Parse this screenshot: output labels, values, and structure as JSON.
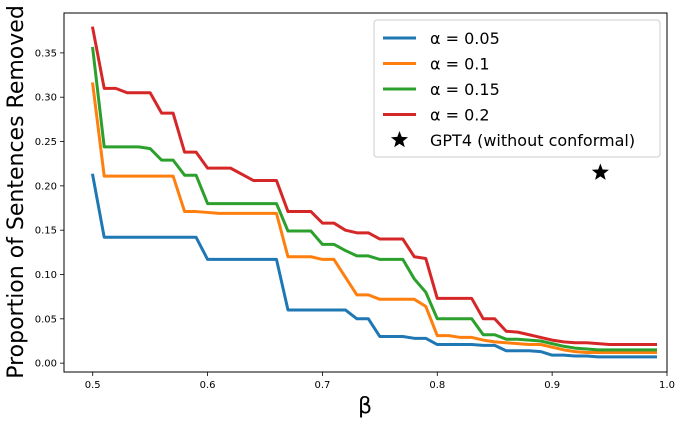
{
  "chart_data": {
    "type": "line",
    "title": "",
    "xlabel": "β",
    "ylabel": "Proportion of Sentences Removed",
    "xlim": [
      0.475,
      1.0
    ],
    "ylim": [
      -0.01,
      0.395
    ],
    "xticks": [
      0.5,
      0.6,
      0.7,
      0.8,
      0.9,
      1.0
    ],
    "xtick_labels": [
      "0.5",
      "0.6",
      "0.7",
      "0.8",
      "0.9",
      "1.0"
    ],
    "yticks": [
      0.0,
      0.05,
      0.1,
      0.15,
      0.2,
      0.25,
      0.3,
      0.35
    ],
    "ytick_labels": [
      "0.00",
      "0.05",
      "0.10",
      "0.15",
      "0.20",
      "0.25",
      "0.30",
      "0.35"
    ],
    "grid": false,
    "legend_position": "top-right",
    "x": [
      0.5,
      0.51,
      0.52,
      0.53,
      0.54,
      0.55,
      0.56,
      0.57,
      0.58,
      0.59,
      0.6,
      0.61,
      0.62,
      0.63,
      0.64,
      0.65,
      0.66,
      0.67,
      0.68,
      0.69,
      0.7,
      0.71,
      0.72,
      0.73,
      0.74,
      0.75,
      0.76,
      0.77,
      0.78,
      0.79,
      0.8,
      0.81,
      0.82,
      0.83,
      0.84,
      0.85,
      0.86,
      0.87,
      0.88,
      0.89,
      0.9,
      0.91,
      0.92,
      0.93,
      0.94,
      0.95,
      0.96,
      0.97,
      0.98,
      0.99
    ],
    "series": [
      {
        "name": "α = 0.05",
        "color": "#1f77b4",
        "values": [
          0.212,
          0.142,
          0.142,
          0.142,
          0.142,
          0.142,
          0.142,
          0.142,
          0.142,
          0.142,
          0.117,
          0.117,
          0.117,
          0.117,
          0.117,
          0.117,
          0.117,
          0.06,
          0.06,
          0.06,
          0.06,
          0.06,
          0.06,
          0.05,
          0.05,
          0.03,
          0.03,
          0.03,
          0.028,
          0.028,
          0.021,
          0.021,
          0.021,
          0.021,
          0.02,
          0.02,
          0.014,
          0.014,
          0.014,
          0.013,
          0.009,
          0.009,
          0.008,
          0.008,
          0.007,
          0.007,
          0.007,
          0.007,
          0.007,
          0.007
        ]
      },
      {
        "name": "α = 0.1",
        "color": "#ff7f0e",
        "values": [
          0.315,
          0.211,
          0.211,
          0.211,
          0.211,
          0.211,
          0.211,
          0.211,
          0.171,
          0.171,
          0.17,
          0.169,
          0.169,
          0.169,
          0.169,
          0.169,
          0.169,
          0.12,
          0.12,
          0.12,
          0.117,
          0.117,
          0.097,
          0.077,
          0.077,
          0.072,
          0.072,
          0.072,
          0.072,
          0.064,
          0.031,
          0.031,
          0.029,
          0.029,
          0.026,
          0.024,
          0.023,
          0.022,
          0.021,
          0.021,
          0.018,
          0.015,
          0.013,
          0.012,
          0.012,
          0.012,
          0.012,
          0.012,
          0.012,
          0.012
        ]
      },
      {
        "name": "α = 0.15",
        "color": "#2ca02c",
        "values": [
          0.355,
          0.244,
          0.244,
          0.244,
          0.244,
          0.242,
          0.229,
          0.229,
          0.212,
          0.212,
          0.18,
          0.18,
          0.18,
          0.18,
          0.18,
          0.18,
          0.18,
          0.149,
          0.149,
          0.149,
          0.134,
          0.134,
          0.127,
          0.121,
          0.121,
          0.117,
          0.117,
          0.117,
          0.095,
          0.08,
          0.05,
          0.05,
          0.05,
          0.05,
          0.032,
          0.032,
          0.027,
          0.027,
          0.026,
          0.025,
          0.022,
          0.019,
          0.017,
          0.016,
          0.015,
          0.015,
          0.015,
          0.015,
          0.015,
          0.015
        ]
      },
      {
        "name": "α = 0.2",
        "color": "#d62728",
        "values": [
          0.378,
          0.31,
          0.31,
          0.305,
          0.305,
          0.305,
          0.282,
          0.282,
          0.238,
          0.238,
          0.22,
          0.22,
          0.22,
          0.213,
          0.206,
          0.206,
          0.206,
          0.171,
          0.171,
          0.171,
          0.158,
          0.158,
          0.15,
          0.147,
          0.147,
          0.14,
          0.14,
          0.14,
          0.12,
          0.118,
          0.073,
          0.073,
          0.073,
          0.073,
          0.05,
          0.05,
          0.036,
          0.035,
          0.032,
          0.029,
          0.026,
          0.024,
          0.023,
          0.023,
          0.022,
          0.021,
          0.021,
          0.021,
          0.021,
          0.021
        ]
      }
    ],
    "markers": [
      {
        "name": "GPT4 (without conformal)",
        "x": 0.942,
        "y": 0.215,
        "symbol": "star",
        "color": "#000000"
      }
    ]
  }
}
